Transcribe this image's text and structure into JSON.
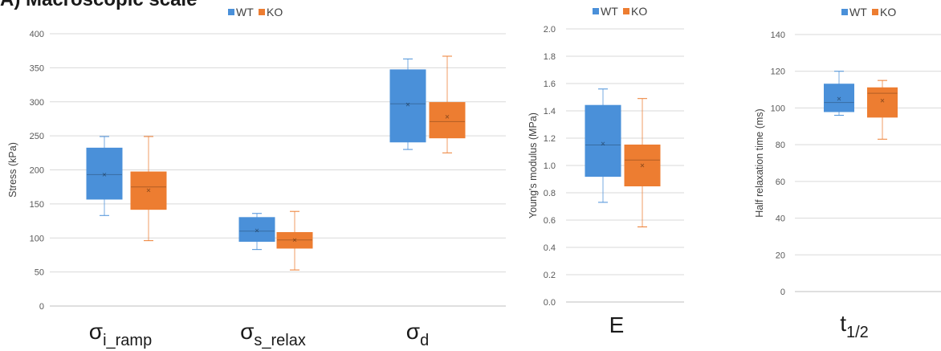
{
  "heading": "A) Macroscopic scale",
  "colors": {
    "WT": "#4a90d9",
    "KO": "#ed7d31",
    "grid": "#d9d9d9",
    "axis": "#bfbfbf"
  },
  "chart_data": [
    {
      "type": "box",
      "ylabel": "Stress (kPa)",
      "ylim": [
        0,
        400
      ],
      "yticks": [
        0,
        50,
        100,
        150,
        200,
        250,
        300,
        350,
        400
      ],
      "legend": {
        "position": "top",
        "entries": [
          "WT",
          "KO"
        ]
      },
      "grid": true,
      "categories": [
        {
          "base": "σ",
          "sub": "i_ramp"
        },
        {
          "base": "σ",
          "sub": "s_relax"
        },
        {
          "base": "σ",
          "sub": "d"
        }
      ],
      "series": [
        {
          "name": "WT",
          "boxes": [
            {
              "min": 133,
              "q1": 157,
              "median": 193,
              "q3": 232,
              "max": 249,
              "mean": 193
            },
            {
              "min": 83,
              "q1": 95,
              "median": 110,
              "q3": 130,
              "max": 136,
              "mean": 111
            },
            {
              "min": 230,
              "q1": 241,
              "median": 297,
              "q3": 347,
              "max": 363,
              "mean": 296
            }
          ]
        },
        {
          "name": "KO",
          "boxes": [
            {
              "min": 96,
              "q1": 142,
              "median": 175,
              "q3": 197,
              "max": 249,
              "mean": 170
            },
            {
              "min": 53,
              "q1": 85,
              "median": 97,
              "q3": 108,
              "max": 139,
              "mean": 97
            },
            {
              "min": 225,
              "q1": 247,
              "median": 271,
              "q3": 299,
              "max": 367,
              "mean": 278
            }
          ]
        }
      ]
    },
    {
      "type": "box",
      "ylabel": "Young's modulus (MPa)",
      "ylim": [
        0,
        2.0
      ],
      "yticks": [
        "0.0",
        "0.2",
        "0.4",
        "0.6",
        "0.8",
        "1.0",
        "1.2",
        "1.4",
        "1.6",
        "1.8",
        "2.0"
      ],
      "legend": {
        "position": "top",
        "entries": [
          "WT",
          "KO"
        ]
      },
      "grid": true,
      "categories": [
        {
          "base": "E",
          "sub": ""
        }
      ],
      "series": [
        {
          "name": "WT",
          "boxes": [
            {
              "min": 0.73,
              "q1": 0.92,
              "median": 1.15,
              "q3": 1.44,
              "max": 1.56,
              "mean": 1.16
            }
          ]
        },
        {
          "name": "KO",
          "boxes": [
            {
              "min": 0.55,
              "q1": 0.85,
              "median": 1.04,
              "q3": 1.15,
              "max": 1.49,
              "mean": 1.0
            }
          ]
        }
      ]
    },
    {
      "type": "box",
      "ylabel": "Half relaxation time (ms)",
      "ylim": [
        0,
        140
      ],
      "yticks": [
        0,
        20,
        40,
        60,
        80,
        100,
        120,
        140
      ],
      "legend": {
        "position": "top",
        "entries": [
          "WT",
          "KO"
        ]
      },
      "grid": true,
      "categories": [
        {
          "base": "t",
          "sub": "1/2"
        }
      ],
      "series": [
        {
          "name": "WT",
          "boxes": [
            {
              "min": 96,
              "q1": 98,
              "median": 103,
              "q3": 113,
              "max": 120,
              "mean": 105
            }
          ]
        },
        {
          "name": "KO",
          "boxes": [
            {
              "min": 83,
              "q1": 95,
              "median": 108,
              "q3": 111,
              "max": 115,
              "mean": 104
            }
          ]
        }
      ]
    }
  ]
}
